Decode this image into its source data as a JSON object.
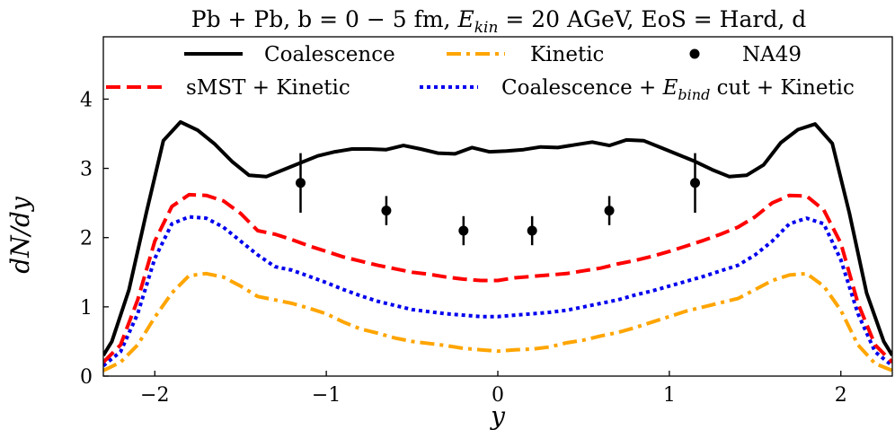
{
  "chart_data": {
    "type": "line",
    "title": "Pb + Pb, b = 0 − 5 fm, E_kin = 20 AGeV, EoS = Hard, d",
    "title_parts": {
      "main": "Pb + Pb, b = 0 − 5 fm, ",
      "e_base": "E",
      "e_sub": "kin",
      "rest": " = 20 AGeV, EoS = Hard, d"
    },
    "xlabel": "y",
    "ylabel": "dN/dy",
    "xlim": [
      -2.3,
      2.3
    ],
    "ylim": [
      0,
      4.9
    ],
    "xticks": [
      -2,
      -1,
      0,
      1,
      2
    ],
    "xtick_labels": [
      "−2",
      "−1",
      "0",
      "1",
      "2"
    ],
    "yticks": [
      0,
      1,
      2,
      3,
      4
    ],
    "ytick_labels": [
      "0",
      "1",
      "2",
      "3",
      "4"
    ],
    "legend_position": "top",
    "series": [
      {
        "name": "Coalescence",
        "label_parts": [
          "Coalescence"
        ],
        "color": "#000000",
        "style": "solid",
        "x": [
          -2.3,
          -2.25,
          -2.15,
          -2.05,
          -1.95,
          -1.85,
          -1.75,
          -1.65,
          -1.55,
          -1.45,
          -1.35,
          -1.25,
          -1.15,
          -1.05,
          -0.95,
          -0.85,
          -0.75,
          -0.65,
          -0.55,
          -0.45,
          -0.35,
          -0.25,
          -0.15,
          -0.05,
          0.05,
          0.15,
          0.25,
          0.35,
          0.45,
          0.55,
          0.65,
          0.75,
          0.85,
          0.95,
          1.05,
          1.15,
          1.25,
          1.35,
          1.45,
          1.55,
          1.65,
          1.75,
          1.85,
          1.95,
          2.05,
          2.15,
          2.25,
          2.3
        ],
        "y": [
          0.3,
          0.5,
          1.25,
          2.35,
          3.4,
          3.67,
          3.55,
          3.35,
          3.1,
          2.9,
          2.88,
          2.98,
          3.08,
          3.18,
          3.24,
          3.28,
          3.28,
          3.27,
          3.33,
          3.28,
          3.22,
          3.21,
          3.3,
          3.24,
          3.25,
          3.27,
          3.31,
          3.3,
          3.34,
          3.38,
          3.33,
          3.41,
          3.4,
          3.3,
          3.2,
          3.1,
          2.98,
          2.88,
          2.9,
          3.05,
          3.37,
          3.56,
          3.64,
          3.36,
          2.35,
          1.2,
          0.5,
          0.3
        ]
      },
      {
        "name": "Kinetic",
        "label_parts": [
          "Kinetic"
        ],
        "color": "#ffa500",
        "style": "dashdot",
        "x": [
          -2.3,
          -2.2,
          -2.1,
          -2.0,
          -1.9,
          -1.8,
          -1.7,
          -1.6,
          -1.5,
          -1.4,
          -1.3,
          -1.2,
          -1.1,
          -1.0,
          -0.9,
          -0.8,
          -0.7,
          -0.6,
          -0.5,
          -0.4,
          -0.3,
          -0.2,
          -0.1,
          0.0,
          0.1,
          0.2,
          0.3,
          0.4,
          0.5,
          0.6,
          0.7,
          0.8,
          0.9,
          1.0,
          1.1,
          1.2,
          1.3,
          1.4,
          1.5,
          1.6,
          1.7,
          1.8,
          1.9,
          2.0,
          2.1,
          2.2,
          2.3
        ],
        "y": [
          0.08,
          0.2,
          0.45,
          0.85,
          1.2,
          1.45,
          1.48,
          1.43,
          1.3,
          1.15,
          1.1,
          1.05,
          0.98,
          0.9,
          0.78,
          0.68,
          0.62,
          0.55,
          0.5,
          0.47,
          0.44,
          0.4,
          0.38,
          0.36,
          0.38,
          0.39,
          0.42,
          0.48,
          0.52,
          0.58,
          0.63,
          0.7,
          0.78,
          0.86,
          0.94,
          1.0,
          1.06,
          1.12,
          1.25,
          1.38,
          1.46,
          1.48,
          1.3,
          0.95,
          0.45,
          0.18,
          0.08
        ]
      },
      {
        "name": "NA49",
        "label_parts": [
          "NA49"
        ],
        "color": "#000000",
        "style": "errorbar",
        "x": [
          -1.15,
          -0.65,
          -0.2,
          0.2,
          0.65,
          1.15
        ],
        "y": [
          2.79,
          2.39,
          2.1,
          2.1,
          2.39,
          2.79
        ],
        "yerr": [
          0.43,
          0.21,
          0.21,
          0.21,
          0.21,
          0.43
        ]
      },
      {
        "name": "sMST + Kinetic",
        "label_parts": [
          "sMST + Kinetic"
        ],
        "color": "#ff0000",
        "style": "dashed",
        "x": [
          -2.3,
          -2.2,
          -2.1,
          -2.0,
          -1.9,
          -1.8,
          -1.7,
          -1.6,
          -1.5,
          -1.4,
          -1.3,
          -1.2,
          -1.1,
          -1.0,
          -0.9,
          -0.8,
          -0.7,
          -0.6,
          -0.5,
          -0.4,
          -0.3,
          -0.2,
          -0.1,
          0.0,
          0.1,
          0.2,
          0.3,
          0.4,
          0.5,
          0.6,
          0.7,
          0.8,
          0.9,
          1.0,
          1.1,
          1.2,
          1.3,
          1.4,
          1.5,
          1.6,
          1.7,
          1.8,
          1.9,
          2.0,
          2.1,
          2.2,
          2.3
        ],
        "y": [
          0.2,
          0.45,
          1.1,
          1.95,
          2.45,
          2.62,
          2.61,
          2.53,
          2.35,
          2.1,
          2.05,
          1.97,
          1.88,
          1.8,
          1.72,
          1.66,
          1.6,
          1.55,
          1.5,
          1.47,
          1.43,
          1.4,
          1.38,
          1.38,
          1.42,
          1.44,
          1.46,
          1.48,
          1.52,
          1.56,
          1.62,
          1.67,
          1.73,
          1.8,
          1.88,
          1.96,
          2.05,
          2.15,
          2.3,
          2.5,
          2.61,
          2.6,
          2.4,
          1.92,
          1.05,
          0.45,
          0.2
        ]
      },
      {
        "name": "Coalescence + E_bind cut + Kinetic",
        "label_parts": [
          "Coalescence + ",
          "E",
          "bind",
          " cut + Kinetic"
        ],
        "color": "#0000ee",
        "style": "dotted",
        "x": [
          -2.3,
          -2.2,
          -2.1,
          -2.0,
          -1.9,
          -1.8,
          -1.7,
          -1.6,
          -1.5,
          -1.4,
          -1.3,
          -1.2,
          -1.1,
          -1.0,
          -0.9,
          -0.8,
          -0.7,
          -0.6,
          -0.5,
          -0.4,
          -0.3,
          -0.2,
          -0.1,
          0.0,
          0.1,
          0.2,
          0.3,
          0.4,
          0.5,
          0.6,
          0.7,
          0.8,
          0.9,
          1.0,
          1.1,
          1.2,
          1.3,
          1.4,
          1.5,
          1.6,
          1.7,
          1.8,
          1.9,
          2.0,
          2.1,
          2.2,
          2.3
        ],
        "y": [
          0.15,
          0.35,
          0.9,
          1.7,
          2.2,
          2.3,
          2.28,
          2.15,
          1.95,
          1.75,
          1.58,
          1.53,
          1.44,
          1.35,
          1.25,
          1.16,
          1.08,
          1.02,
          0.96,
          0.93,
          0.9,
          0.88,
          0.86,
          0.86,
          0.88,
          0.9,
          0.92,
          0.95,
          1.0,
          1.05,
          1.1,
          1.17,
          1.23,
          1.3,
          1.37,
          1.44,
          1.52,
          1.6,
          1.75,
          1.95,
          2.2,
          2.28,
          2.2,
          1.68,
          0.9,
          0.35,
          0.15
        ]
      }
    ]
  }
}
